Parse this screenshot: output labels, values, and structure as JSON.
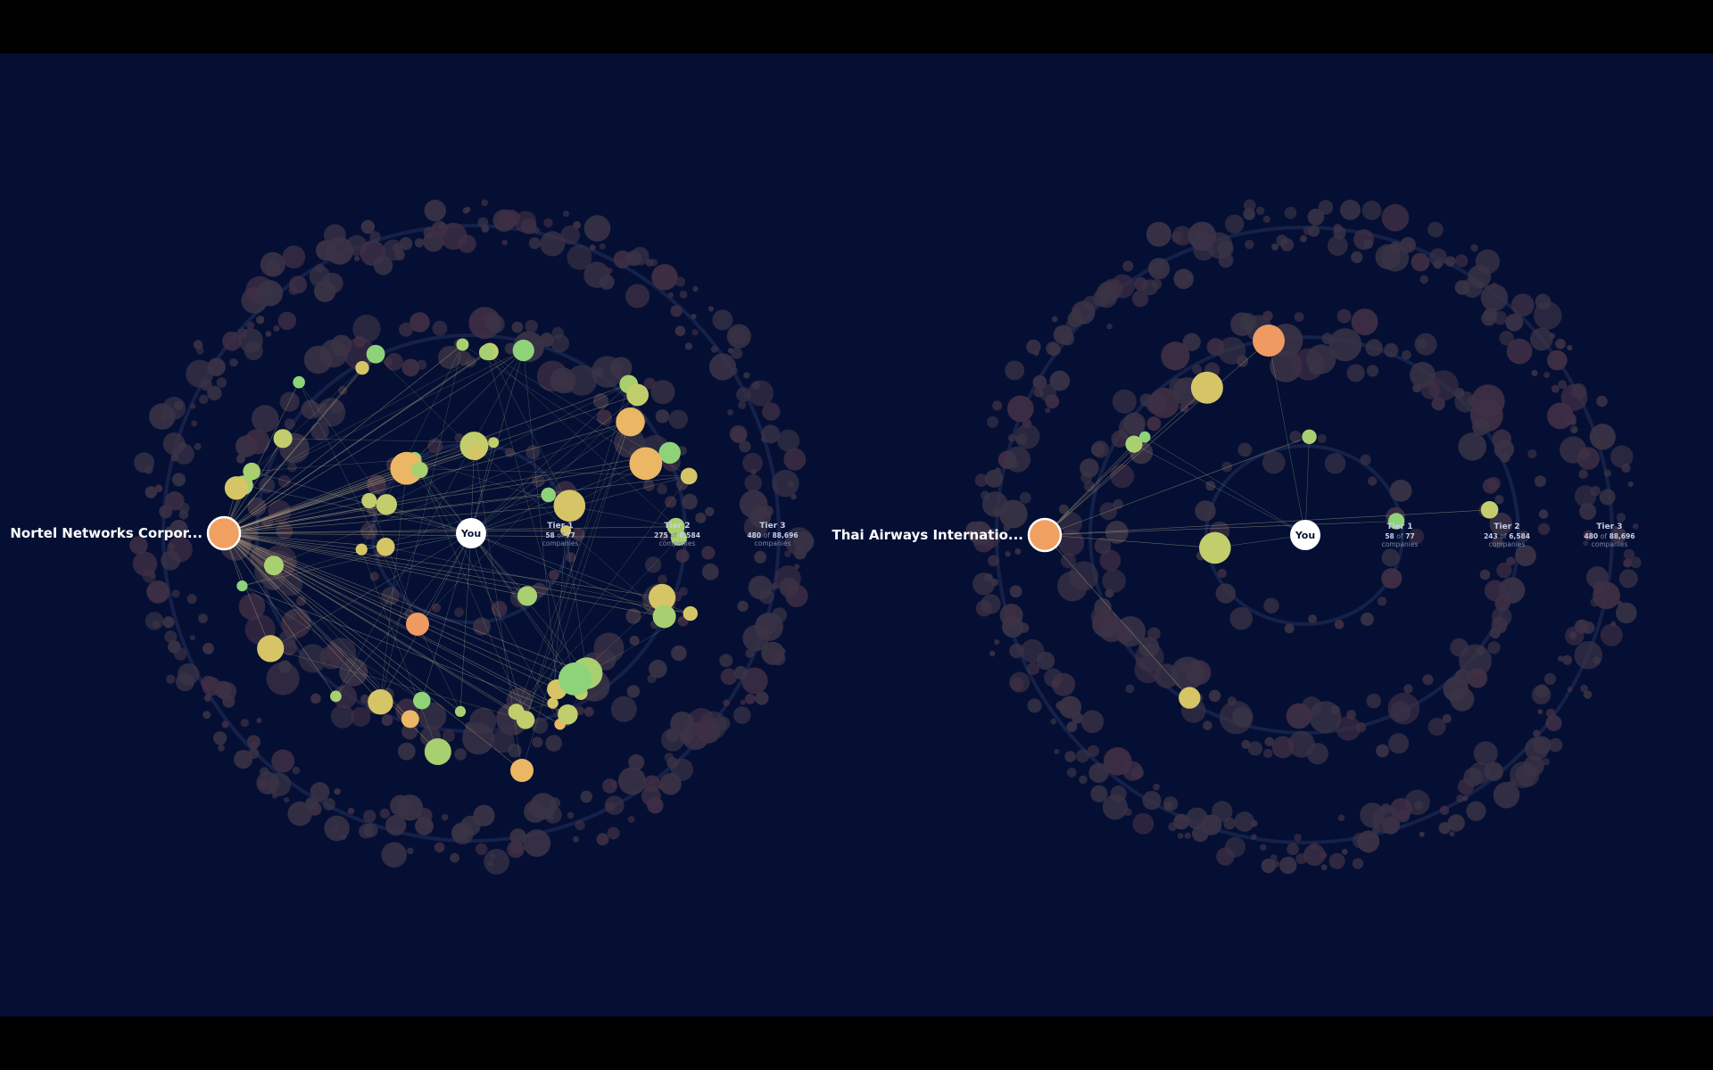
{
  "diagrams": [
    {
      "focus_label": "Nortel Networks Corpor...",
      "center_label": "You",
      "tiers": [
        {
          "name": "Tier 1",
          "count": "58",
          "of_word": "of",
          "total": "77",
          "unit": "companies"
        },
        {
          "name": "Tier 2",
          "count": "275",
          "of_word": "of",
          "total": "6,584",
          "unit": "companies"
        },
        {
          "name": "Tier 3",
          "count": "480",
          "of_word": "of",
          "total": "88,696",
          "unit": "companies"
        }
      ],
      "highlight": "many"
    },
    {
      "focus_label": "Thai Airways Internatio...",
      "center_label": "You",
      "tiers": [
        {
          "name": "Tier 1",
          "count": "58",
          "of_word": "of",
          "total": "77",
          "unit": "companies"
        },
        {
          "name": "Tier 2",
          "count": "243",
          "of_word": "of",
          "total": "6,584",
          "unit": "companies"
        },
        {
          "name": "Tier 3",
          "count": "480",
          "of_word": "of",
          "total": "88,696",
          "unit": "companies"
        }
      ],
      "highlight": "few"
    }
  ],
  "colors": {
    "background": "#040f33",
    "frame": "#000000",
    "focus_node": "#f0a060",
    "center_node": "#ffffff",
    "dim_node": "#3a3346",
    "dim_node_alt": "#3f2f45",
    "highlight_scale": [
      "#d5c566",
      "#c2cd6c",
      "#a8d070",
      "#8ed37a",
      "#ebb765",
      "#ef9a62"
    ]
  }
}
